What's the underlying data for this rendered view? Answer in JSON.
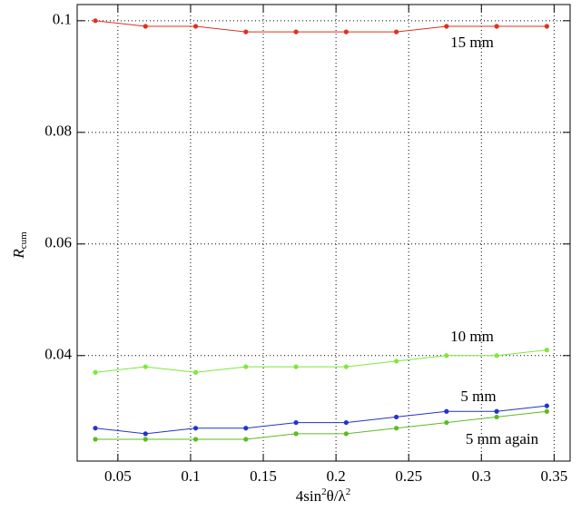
{
  "chart_data": {
    "type": "line",
    "ylabel": "R",
    "ylabel_sub": "cum",
    "xlabel": [
      {
        "text": "4sin"
      },
      {
        "text": "2",
        "sup": true
      },
      {
        "text": "θ/λ"
      },
      {
        "text": "2",
        "sup": true
      }
    ],
    "x": [
      0.0345,
      0.069,
      0.1035,
      0.138,
      0.1725,
      0.207,
      0.2415,
      0.276,
      0.3105,
      0.345
    ],
    "series": [
      {
        "name": "15 mm",
        "color": "#e0301e",
        "values": [
          0.1,
          0.099,
          0.099,
          0.098,
          0.098,
          0.098,
          0.098,
          0.099,
          0.099,
          0.099
        ]
      },
      {
        "name": "10 mm",
        "color": "#7ee83a",
        "values": [
          0.037,
          0.038,
          0.037,
          0.038,
          0.038,
          0.038,
          0.039,
          0.04,
          0.04,
          0.041
        ]
      },
      {
        "name": "5 mm",
        "color": "#2233cc",
        "values": [
          0.027,
          0.026,
          0.027,
          0.027,
          0.028,
          0.028,
          0.029,
          0.03,
          0.03,
          0.031
        ]
      },
      {
        "name": "5 mm again",
        "color": "#5dbb22",
        "values": [
          0.025,
          0.025,
          0.025,
          0.025,
          0.026,
          0.026,
          0.027,
          0.028,
          0.029,
          0.03
        ]
      }
    ],
    "xlim": [
      0.022,
      0.361
    ],
    "xticks": [
      0.05,
      0.1,
      0.15,
      0.2,
      0.25,
      0.3,
      0.35
    ],
    "ylim": [
      0.0211,
      0.1029
    ],
    "yticks": [
      0.04,
      0.06,
      0.08,
      0.1
    ],
    "grid": true
  }
}
